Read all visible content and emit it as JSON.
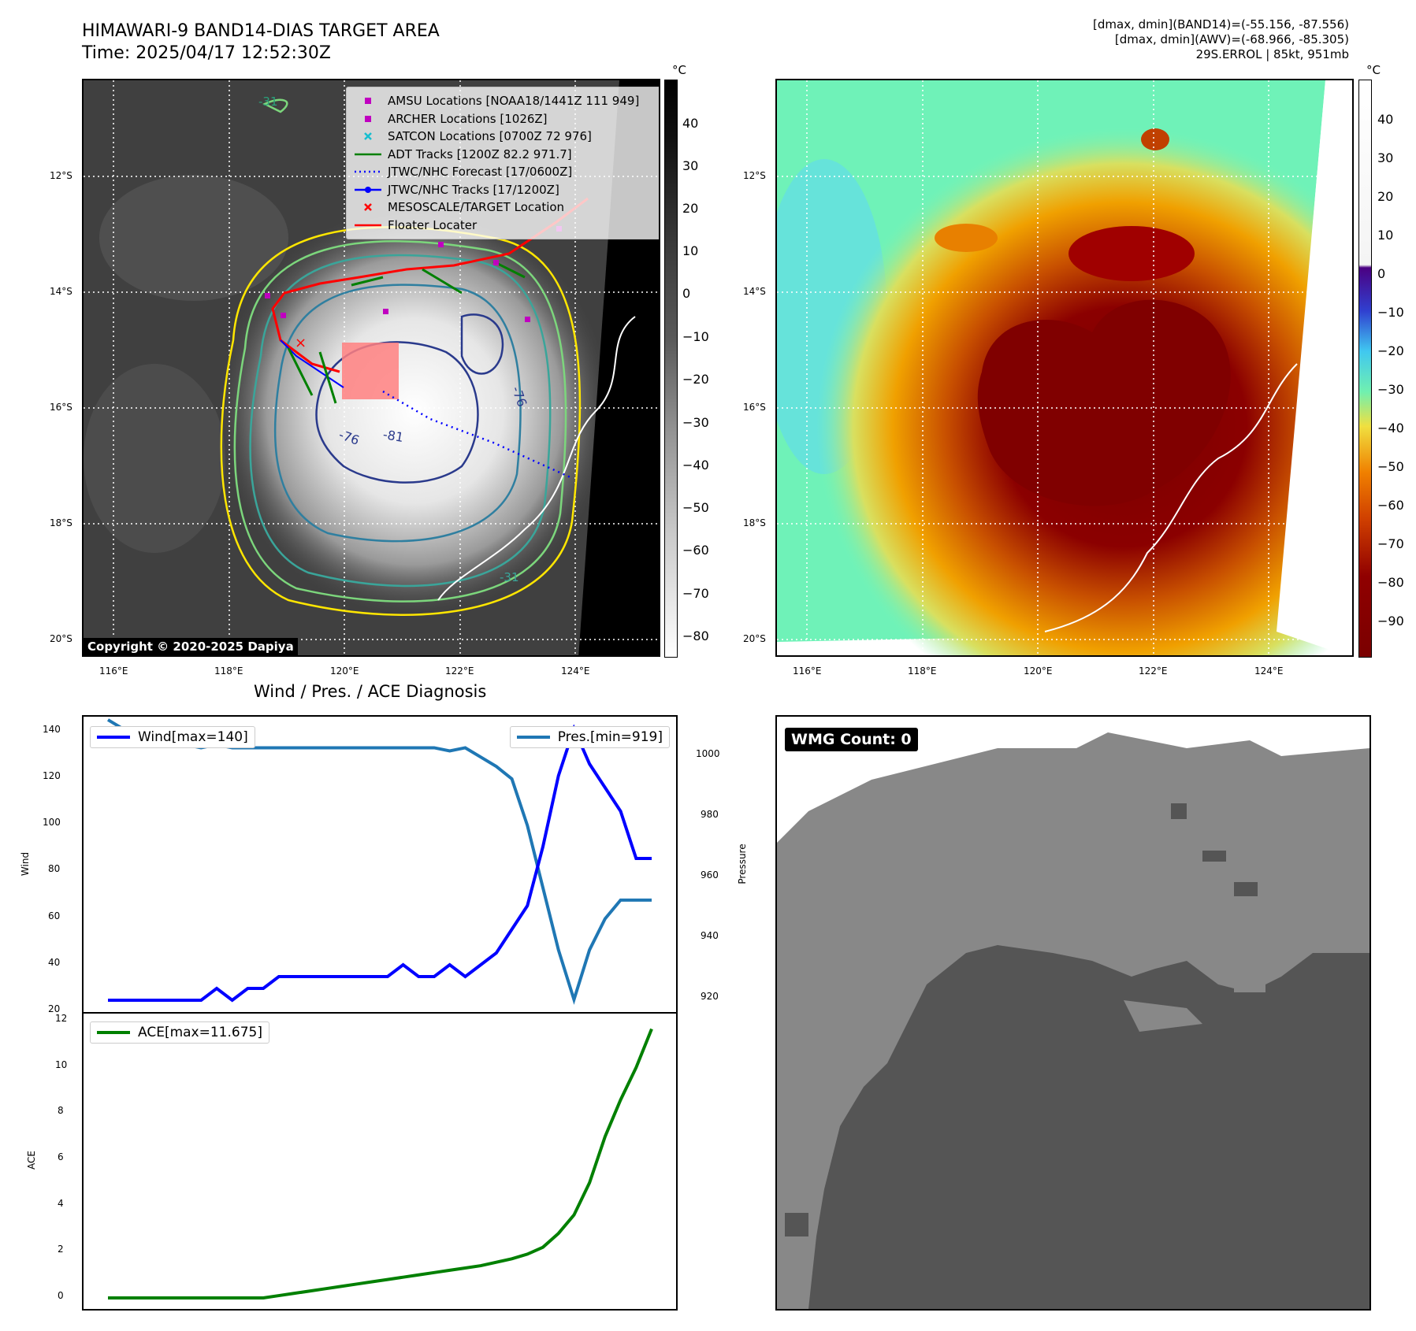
{
  "header": {
    "title_line1": "HIMAWARI-9 BAND14-DIAS TARGET AREA",
    "title_line2": "Time: 2025/04/17 12:52:30Z",
    "info_line1": "[dmax, dmin](BAND14)=(-55.156, -87.556)",
    "info_line2": "[dmax, dmin](AWV)=(-68.966, -85.305)",
    "info_line3": "29S.ERROL | 85kt, 951mb"
  },
  "map_axes": {
    "lat_labels": [
      "12°S",
      "14°S",
      "16°S",
      "18°S",
      "20°S"
    ],
    "lon_labels": [
      "116°E",
      "118°E",
      "120°E",
      "122°E",
      "124°E"
    ]
  },
  "ir_panel": {
    "colorbar_unit": "°C",
    "colorbar_ticks": [
      "40",
      "30",
      "20",
      "10",
      "0",
      "−10",
      "−20",
      "−30",
      "−40",
      "−50",
      "−60",
      "−70",
      "−80"
    ],
    "contour_labels": [
      "-31",
      "-76",
      "-81",
      "-76",
      "-31"
    ],
    "copyright": "Copyright © 2020-2025 Dapiya",
    "legend": [
      {
        "label": "AMSU Locations [NOAA18/1441Z 111 949]",
        "symbol": "square",
        "color": "#c000c0"
      },
      {
        "label": "ARCHER Locations [1026Z]",
        "symbol": "square",
        "color": "#c000c0"
      },
      {
        "label": "SATCON Locations [0700Z 72 976]",
        "symbol": "x",
        "color": "#17becf"
      },
      {
        "label": "ADT Tracks [1200Z 82.2 971.7]",
        "symbol": "line",
        "color": "#008000"
      },
      {
        "label": "JTWC/NHC Forecast [17/0600Z]",
        "symbol": "dotted",
        "color": "#0000ff"
      },
      {
        "label": "JTWC/NHC Tracks [17/1200Z]",
        "symbol": "line-dot",
        "color": "#0000ff"
      },
      {
        "label": "MESOSCALE/TARGET Location",
        "symbol": "x",
        "color": "#ff0000"
      },
      {
        "label": "Floater Locater",
        "symbol": "line",
        "color": "#ff0000"
      }
    ]
  },
  "awv_panel": {
    "colorbar_unit": "°C",
    "colorbar_ticks": [
      "40",
      "30",
      "20",
      "10",
      "0",
      "−10",
      "−20",
      "−30",
      "−40",
      "−50",
      "−60",
      "−70",
      "−80",
      "−90"
    ]
  },
  "diagnosis": {
    "title": "Wind / Pres. / ACE Diagnosis",
    "wind_legend": "Wind[max=140]",
    "pres_legend": "Pres.[min=919]",
    "ace_legend": "ACE[max=11.675]",
    "wind_ylabel": "Wind",
    "pres_ylabel": "Pressure",
    "ace_ylabel": "ACE",
    "wind_ticks": [
      "140",
      "120",
      "100",
      "80",
      "60",
      "40",
      "20"
    ],
    "pres_ticks": [
      "1000",
      "980",
      "960",
      "940",
      "920"
    ],
    "ace_ticks": [
      "12",
      "10",
      "8",
      "6",
      "4",
      "2",
      "0"
    ]
  },
  "wmg_panel": {
    "label": "WMG Count: 0"
  },
  "chart_data": [
    {
      "type": "line",
      "title": "Wind / Pres. / ACE Diagnosis",
      "x": [
        0,
        1,
        2,
        3,
        4,
        5,
        6,
        7,
        8,
        9,
        10,
        11,
        12,
        13,
        14,
        15,
        16,
        17,
        18,
        19,
        20,
        21,
        22,
        23,
        24,
        25,
        26,
        27,
        28,
        29,
        30,
        31,
        32,
        33,
        34,
        35
      ],
      "series": [
        {
          "name": "Wind[max=140]",
          "axis": "left",
          "color": "#0000ff",
          "values": [
            25,
            25,
            25,
            25,
            25,
            25,
            25,
            30,
            25,
            30,
            30,
            35,
            35,
            35,
            35,
            35,
            35,
            35,
            35,
            40,
            35,
            35,
            40,
            35,
            40,
            45,
            55,
            65,
            90,
            120,
            140,
            125,
            115,
            105,
            85,
            85
          ]
        },
        {
          "name": "Pres.[min=919]",
          "axis": "right",
          "color": "#1f77b4",
          "values": [
            1009,
            1006,
            1006,
            1005,
            1002,
            1001,
            1000,
            1001,
            1000,
            1000,
            1000,
            1000,
            1000,
            1000,
            1000,
            1000,
            1000,
            1000,
            1000,
            1000,
            1000,
            1000,
            999,
            1000,
            997,
            994,
            990,
            975,
            955,
            935,
            919,
            935,
            945,
            951,
            951,
            951
          ]
        }
      ],
      "ylim": [
        20,
        145
      ],
      "y2lim": [
        915,
        1010
      ],
      "ylabel": "Wind",
      "y2label": "Pressure"
    },
    {
      "type": "line",
      "x": [
        0,
        1,
        2,
        3,
        4,
        5,
        6,
        7,
        8,
        9,
        10,
        11,
        12,
        13,
        14,
        15,
        16,
        17,
        18,
        19,
        20,
        21,
        22,
        23,
        24,
        25,
        26,
        27,
        28,
        29,
        30,
        31,
        32,
        33,
        34,
        35
      ],
      "series": [
        {
          "name": "ACE[max=11.675]",
          "color": "#008000",
          "values": [
            0,
            0,
            0,
            0,
            0,
            0,
            0,
            0,
            0,
            0,
            0,
            0.1,
            0.2,
            0.3,
            0.4,
            0.5,
            0.6,
            0.7,
            0.8,
            0.9,
            1.0,
            1.1,
            1.2,
            1.3,
            1.4,
            1.55,
            1.7,
            1.9,
            2.2,
            2.8,
            3.6,
            5.0,
            7.0,
            8.6,
            10.0,
            11.675
          ]
        }
      ],
      "ylim": [
        0,
        12
      ],
      "ylabel": "ACE"
    }
  ]
}
